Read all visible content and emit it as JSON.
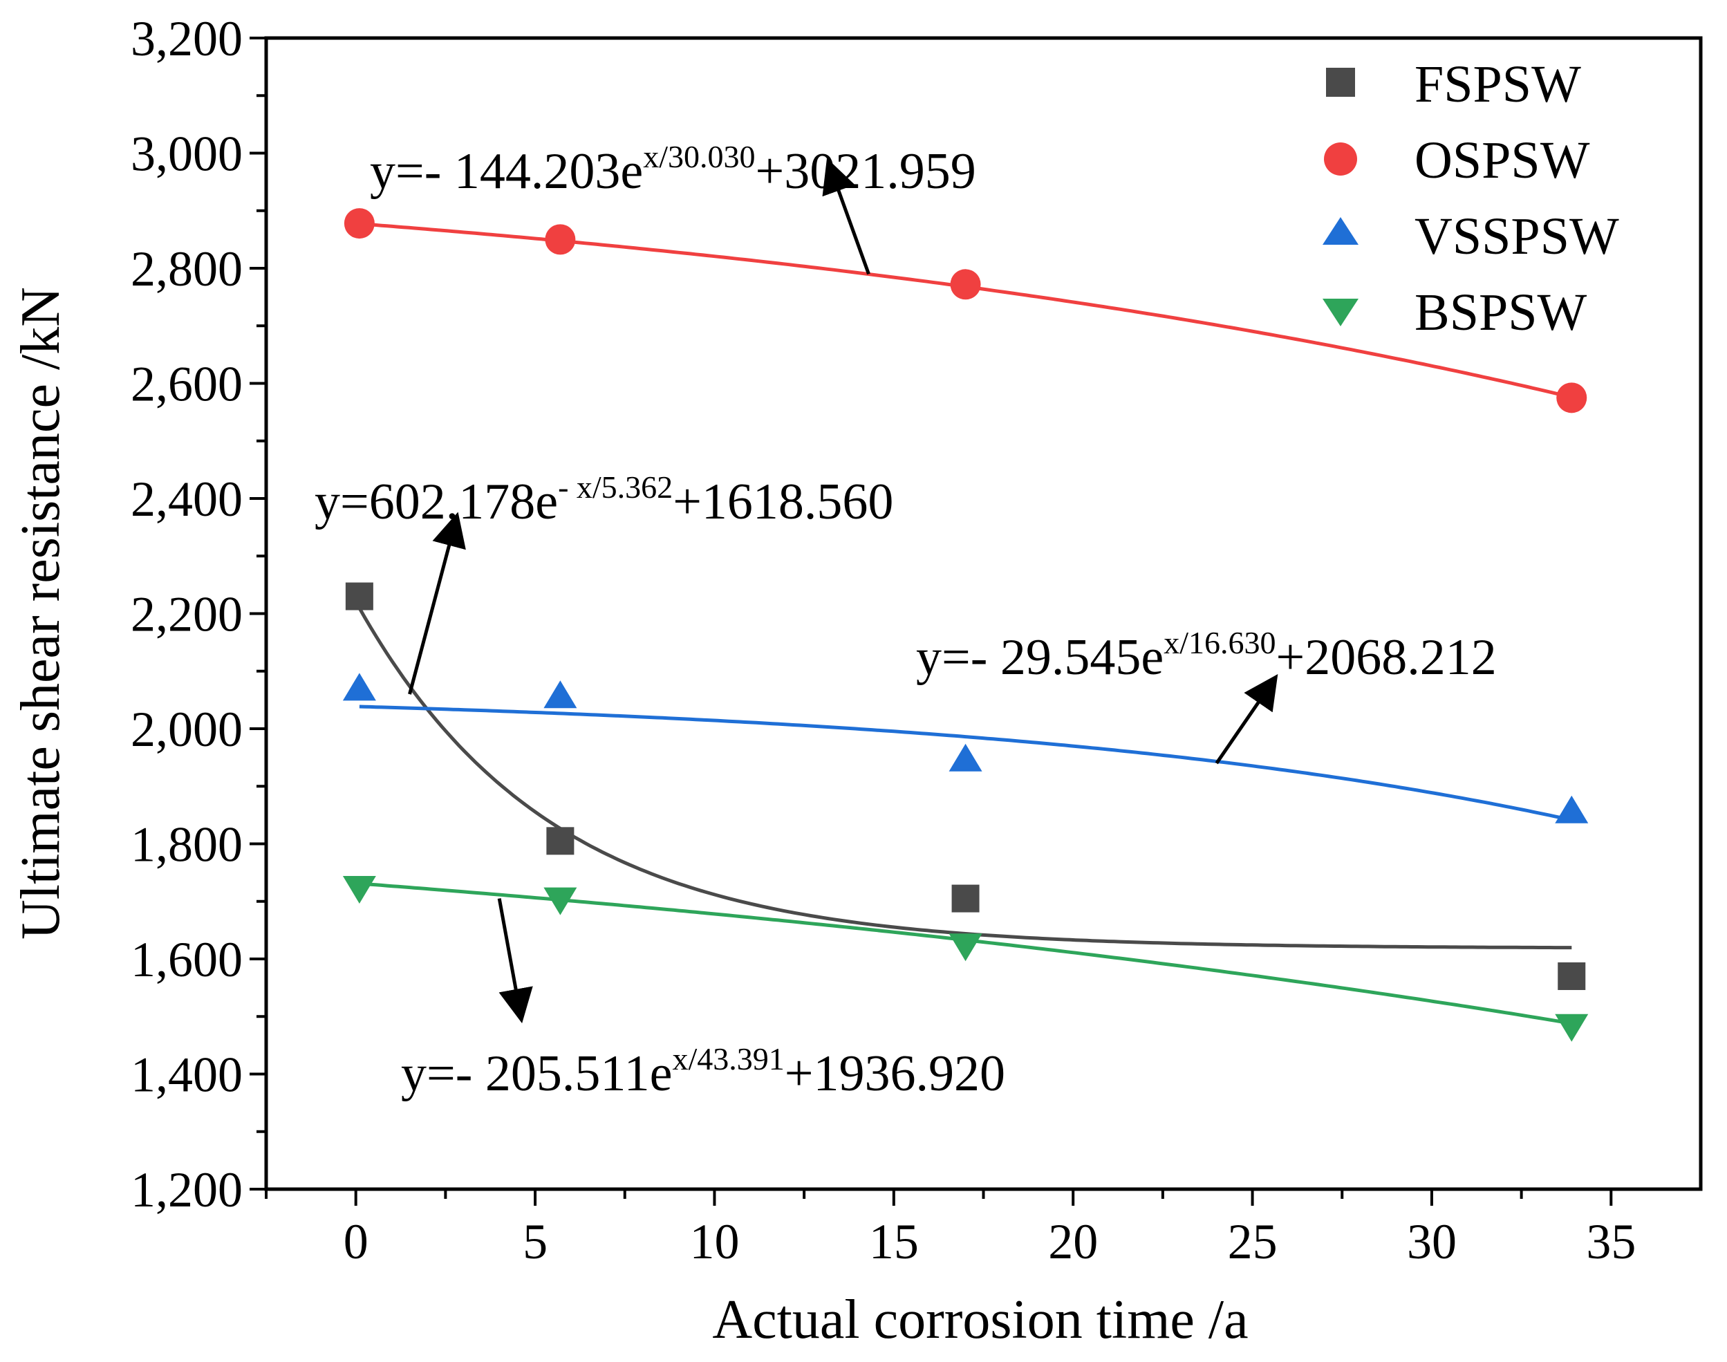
{
  "chart_data": {
    "type": "scatter",
    "title": "",
    "xlabel": "Actual corrosion time /a",
    "ylabel": "Ultimate shear resistance /kN",
    "xlim": [
      -2.5,
      37.5
    ],
    "ylim": [
      1200,
      3200
    ],
    "xticks": [
      0,
      5,
      10,
      15,
      20,
      25,
      30,
      35
    ],
    "xtick_labels": [
      "0",
      "5",
      "10",
      "15",
      "20",
      "25",
      "30",
      "35"
    ],
    "yticks": [
      1200,
      1400,
      1600,
      1800,
      2000,
      2200,
      2400,
      2600,
      2800,
      3000,
      3200
    ],
    "ytick_labels": [
      "1,200",
      "1,400",
      "1,600",
      "1,800",
      "2,000",
      "2,200",
      "2,400",
      "2,600",
      "2,800",
      "3,000",
      "3,200"
    ],
    "legend_position": "top-right",
    "grid": false,
    "series": [
      {
        "name": "FSPSW",
        "marker": "square",
        "color": "#4a4a4a",
        "x": [
          0.1,
          5.7,
          17.0,
          33.9
        ],
        "y": [
          2230,
          1805,
          1705,
          1570
        ],
        "fit": {
          "a": 602.178,
          "b": -5.362,
          "c": 1618.56,
          "x_range": [
            0.1,
            33.9
          ],
          "label_main": "y=602.178e",
          "label_sup": "- x/5.362",
          "label_tail": "+1618.560"
        }
      },
      {
        "name": "OSPSW",
        "marker": "circle",
        "color": "#f04040",
        "x": [
          0.1,
          5.7,
          17.0,
          33.9
        ],
        "y": [
          2878,
          2850,
          2772,
          2575
        ],
        "fit": {
          "a": -144.203,
          "b": 30.03,
          "c": 3021.959,
          "x_range": [
            0.1,
            33.9
          ],
          "label_main": "y=- 144.203e",
          "label_sup": "x/30.030",
          "label_tail": "+3021.959"
        }
      },
      {
        "name": "VSSPSW",
        "marker": "triangle-up",
        "color": "#1f6fd6",
        "x": [
          0.1,
          5.7,
          17.0,
          33.9
        ],
        "y": [
          2068,
          2055,
          1945,
          1855
        ],
        "fit": {
          "a": -29.545,
          "b": 16.63,
          "c": 2068.212,
          "x_range": [
            0.1,
            33.9
          ],
          "label_main": "y=- 29.545e",
          "label_sup": "x/16.630",
          "label_tail": "+2068.212"
        }
      },
      {
        "name": "BSPSW",
        "marker": "triangle-down",
        "color": "#2ea55a",
        "x": [
          0.1,
          5.7,
          17.0,
          33.9
        ],
        "y": [
          1725,
          1705,
          1625,
          1485
        ],
        "fit": {
          "a": -205.511,
          "b": 43.391,
          "c": 1936.92,
          "x_range": [
            0.1,
            33.9
          ],
          "label_main": "y=- 205.511e",
          "label_sup": "x/43.391",
          "label_tail": "+1936.920"
        }
      }
    ],
    "annotations": [
      {
        "series": "OSPSW",
        "from": [
          14.3,
          2790
        ],
        "to": [
          13.2,
          2980
        ]
      },
      {
        "series": "FSPSW",
        "from": [
          1.5,
          2060
        ],
        "to": [
          2.8,
          2365
        ]
      },
      {
        "series": "VSSPSW",
        "from": [
          24.0,
          1940
        ],
        "to": [
          25.6,
          2085
        ]
      },
      {
        "series": "BSPSW",
        "from": [
          4.0,
          1705
        ],
        "to": [
          4.6,
          1500
        ]
      }
    ]
  }
}
